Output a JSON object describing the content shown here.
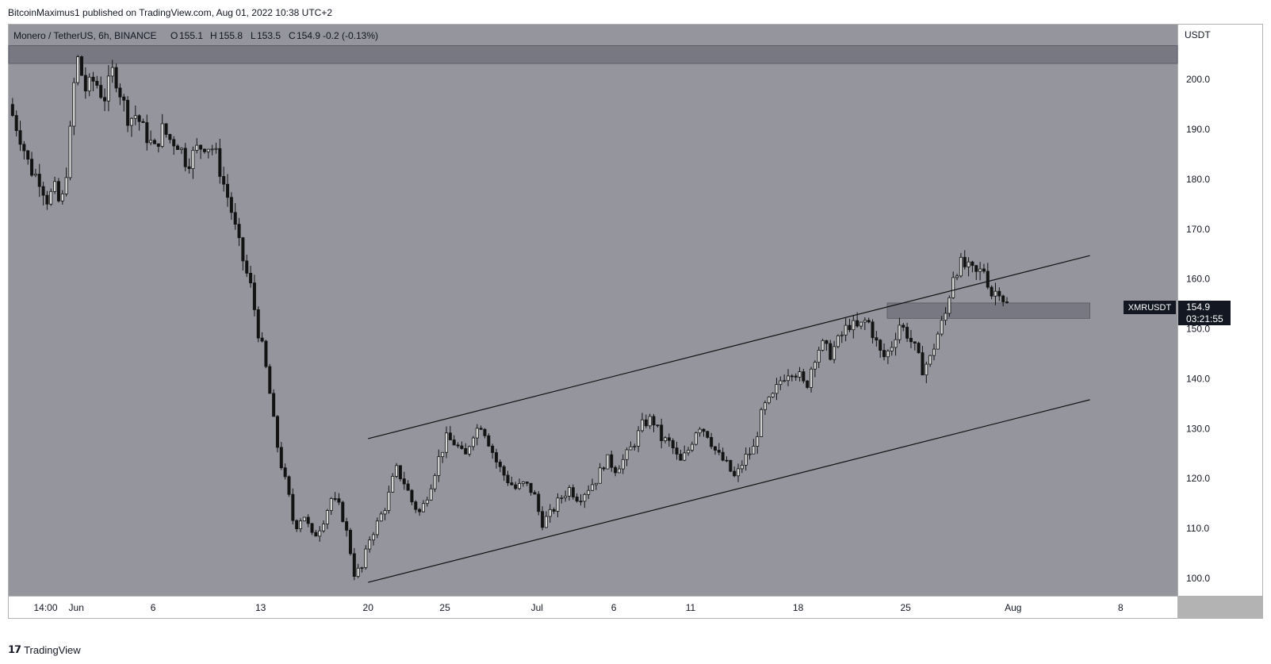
{
  "publisher_line": "BitcoinMaximus1 published on TradingView.com, Aug 01, 2022 10:38 UTC+2",
  "footer": {
    "brand": "TradingView",
    "logo_icon": "tradingview-logo-icon"
  },
  "colors": {
    "plot_bg": "#94959d",
    "axis_bg": "#ffffff",
    "candle": "#131313",
    "zone": "#5f616a",
    "label_bg": "#131722",
    "label_text": "#ffffff"
  },
  "chart_data": {
    "type": "candlestick",
    "title": "Monero / TetherUS, 6h, BINANCE",
    "ohlc": {
      "open_label": "O",
      "open": "155.1",
      "high_label": "H",
      "high": "155.8",
      "low_label": "L",
      "low": "153.5",
      "close_label": "C",
      "close": "154.9",
      "change": "-0.2 (-0.13%)"
    },
    "currency": "USDT",
    "symbol": "XMRUSDT",
    "last_price": "154.9",
    "countdown": "03:21:55",
    "ylim": [
      96.5,
      211
    ],
    "y_ticks": [
      "100.0",
      "110.0",
      "120.0",
      "130.0",
      "140.0",
      "150.0",
      "160.0",
      "170.0",
      "180.0",
      "190.0",
      "200.0"
    ],
    "x_ticks": [
      "14:00",
      "Jun",
      "6",
      "13",
      "20",
      "25",
      "Jul",
      "6",
      "11",
      "18",
      "25",
      "Aug",
      "8"
    ],
    "x_tick_values": [
      -2.0,
      0.0,
      5.0,
      12.0,
      19.0,
      24.0,
      30.0,
      35.0,
      40.0,
      47.0,
      54.0,
      61.0,
      68.0
    ],
    "x_range_days": [
      -4.4,
      71.7
    ],
    "close_series": [
      {
        "d": -4.4,
        "p": 195
      },
      {
        "d": -3.6,
        "p": 188
      },
      {
        "d": -3.0,
        "p": 182
      },
      {
        "d": -2.4,
        "p": 180
      },
      {
        "d": -1.9,
        "p": 176
      },
      {
        "d": -1.4,
        "p": 178
      },
      {
        "d": -1.0,
        "p": 174
      },
      {
        "d": -0.5,
        "p": 185
      },
      {
        "d": -0.2,
        "p": 198
      },
      {
        "d": 0.1,
        "p": 204
      },
      {
        "d": 0.6,
        "p": 198
      },
      {
        "d": 1.2,
        "p": 200
      },
      {
        "d": 1.8,
        "p": 196
      },
      {
        "d": 2.4,
        "p": 202
      },
      {
        "d": 2.9,
        "p": 197
      },
      {
        "d": 3.4,
        "p": 192
      },
      {
        "d": 3.9,
        "p": 193
      },
      {
        "d": 4.5,
        "p": 189
      },
      {
        "d": 5.1,
        "p": 186
      },
      {
        "d": 5.6,
        "p": 190
      },
      {
        "d": 6.1,
        "p": 188
      },
      {
        "d": 6.7,
        "p": 187
      },
      {
        "d": 7.2,
        "p": 183
      },
      {
        "d": 7.8,
        "p": 186
      },
      {
        "d": 8.4,
        "p": 187
      },
      {
        "d": 9.0,
        "p": 186
      },
      {
        "d": 9.5,
        "p": 180
      },
      {
        "d": 10.0,
        "p": 175
      },
      {
        "d": 10.5,
        "p": 168
      },
      {
        "d": 11.0,
        "p": 162
      },
      {
        "d": 11.4,
        "p": 158
      },
      {
        "d": 11.8,
        "p": 150
      },
      {
        "d": 12.2,
        "p": 145
      },
      {
        "d": 12.6,
        "p": 137
      },
      {
        "d": 13.0,
        "p": 128
      },
      {
        "d": 13.4,
        "p": 122
      },
      {
        "d": 13.8,
        "p": 117
      },
      {
        "d": 14.2,
        "p": 110
      },
      {
        "d": 14.8,
        "p": 113
      },
      {
        "d": 15.4,
        "p": 108
      },
      {
        "d": 16.0,
        "p": 111
      },
      {
        "d": 16.6,
        "p": 116
      },
      {
        "d": 17.2,
        "p": 114
      },
      {
        "d": 17.7,
        "p": 108
      },
      {
        "d": 18.1,
        "p": 101
      },
      {
        "d": 18.6,
        "p": 102
      },
      {
        "d": 19.1,
        "p": 108
      },
      {
        "d": 19.6,
        "p": 111
      },
      {
        "d": 20.2,
        "p": 115
      },
      {
        "d": 20.8,
        "p": 122
      },
      {
        "d": 21.4,
        "p": 119
      },
      {
        "d": 21.9,
        "p": 115
      },
      {
        "d": 22.4,
        "p": 113
      },
      {
        "d": 23.0,
        "p": 118
      },
      {
        "d": 23.6,
        "p": 124
      },
      {
        "d": 24.1,
        "p": 128
      },
      {
        "d": 24.7,
        "p": 127
      },
      {
        "d": 25.3,
        "p": 124
      },
      {
        "d": 25.8,
        "p": 129
      },
      {
        "d": 26.4,
        "p": 131
      },
      {
        "d": 26.9,
        "p": 127
      },
      {
        "d": 27.4,
        "p": 123
      },
      {
        "d": 28.0,
        "p": 120
      },
      {
        "d": 28.6,
        "p": 118
      },
      {
        "d": 29.2,
        "p": 119
      },
      {
        "d": 29.8,
        "p": 117
      },
      {
        "d": 30.3,
        "p": 111
      },
      {
        "d": 30.9,
        "p": 113
      },
      {
        "d": 31.5,
        "p": 116
      },
      {
        "d": 32.1,
        "p": 118
      },
      {
        "d": 32.7,
        "p": 116
      },
      {
        "d": 33.3,
        "p": 118
      },
      {
        "d": 33.9,
        "p": 120
      },
      {
        "d": 34.5,
        "p": 124
      },
      {
        "d": 35.1,
        "p": 122
      },
      {
        "d": 35.7,
        "p": 124
      },
      {
        "d": 36.3,
        "p": 127
      },
      {
        "d": 36.9,
        "p": 131
      },
      {
        "d": 37.5,
        "p": 132
      },
      {
        "d": 38.1,
        "p": 128
      },
      {
        "d": 38.7,
        "p": 127
      },
      {
        "d": 39.3,
        "p": 123
      },
      {
        "d": 39.9,
        "p": 126
      },
      {
        "d": 40.5,
        "p": 131
      },
      {
        "d": 41.1,
        "p": 129
      },
      {
        "d": 41.7,
        "p": 125
      },
      {
        "d": 42.3,
        "p": 123
      },
      {
        "d": 42.9,
        "p": 120
      },
      {
        "d": 43.5,
        "p": 124
      },
      {
        "d": 44.1,
        "p": 126
      },
      {
        "d": 44.7,
        "p": 134
      },
      {
        "d": 45.3,
        "p": 136
      },
      {
        "d": 45.9,
        "p": 140
      },
      {
        "d": 46.5,
        "p": 142
      },
      {
        "d": 47.0,
        "p": 141
      },
      {
        "d": 47.5,
        "p": 138
      },
      {
        "d": 48.0,
        "p": 144
      },
      {
        "d": 48.5,
        "p": 147
      },
      {
        "d": 49.1,
        "p": 145
      },
      {
        "d": 49.7,
        "p": 148
      },
      {
        "d": 50.3,
        "p": 151
      },
      {
        "d": 50.9,
        "p": 150
      },
      {
        "d": 51.5,
        "p": 152
      },
      {
        "d": 52.0,
        "p": 148
      },
      {
        "d": 52.5,
        "p": 144
      },
      {
        "d": 53.0,
        "p": 146
      },
      {
        "d": 53.6,
        "p": 151
      },
      {
        "d": 54.1,
        "p": 149
      },
      {
        "d": 54.6,
        "p": 146
      },
      {
        "d": 55.1,
        "p": 142
      },
      {
        "d": 55.6,
        "p": 144
      },
      {
        "d": 56.1,
        "p": 149
      },
      {
        "d": 56.6,
        "p": 153
      },
      {
        "d": 57.1,
        "p": 161
      },
      {
        "d": 57.6,
        "p": 163
      },
      {
        "d": 58.1,
        "p": 162
      },
      {
        "d": 58.6,
        "p": 161
      },
      {
        "d": 59.1,
        "p": 162
      },
      {
        "d": 59.6,
        "p": 157
      },
      {
        "d": 60.1,
        "p": 158
      },
      {
        "d": 60.5,
        "p": 155
      },
      {
        "d": 60.8,
        "p": 154.9
      }
    ],
    "channel_upper": {
      "start": {
        "d": 19.0,
        "p": 128.0
      },
      "end": {
        "d": 66.0,
        "p": 164.7
      }
    },
    "channel_lower": {
      "start": {
        "d": 19.0,
        "p": 99.2
      },
      "end": {
        "d": 66.0,
        "p": 135.8
      }
    },
    "zones": [
      {
        "name": "resistance",
        "d_start": -4.4,
        "d_end": 71.7,
        "p_low": 203.2,
        "p_high": 206.8
      },
      {
        "name": "support",
        "d_start": 52.8,
        "d_end": 66.0,
        "p_low": 152.1,
        "p_high": 155.2
      }
    ]
  }
}
